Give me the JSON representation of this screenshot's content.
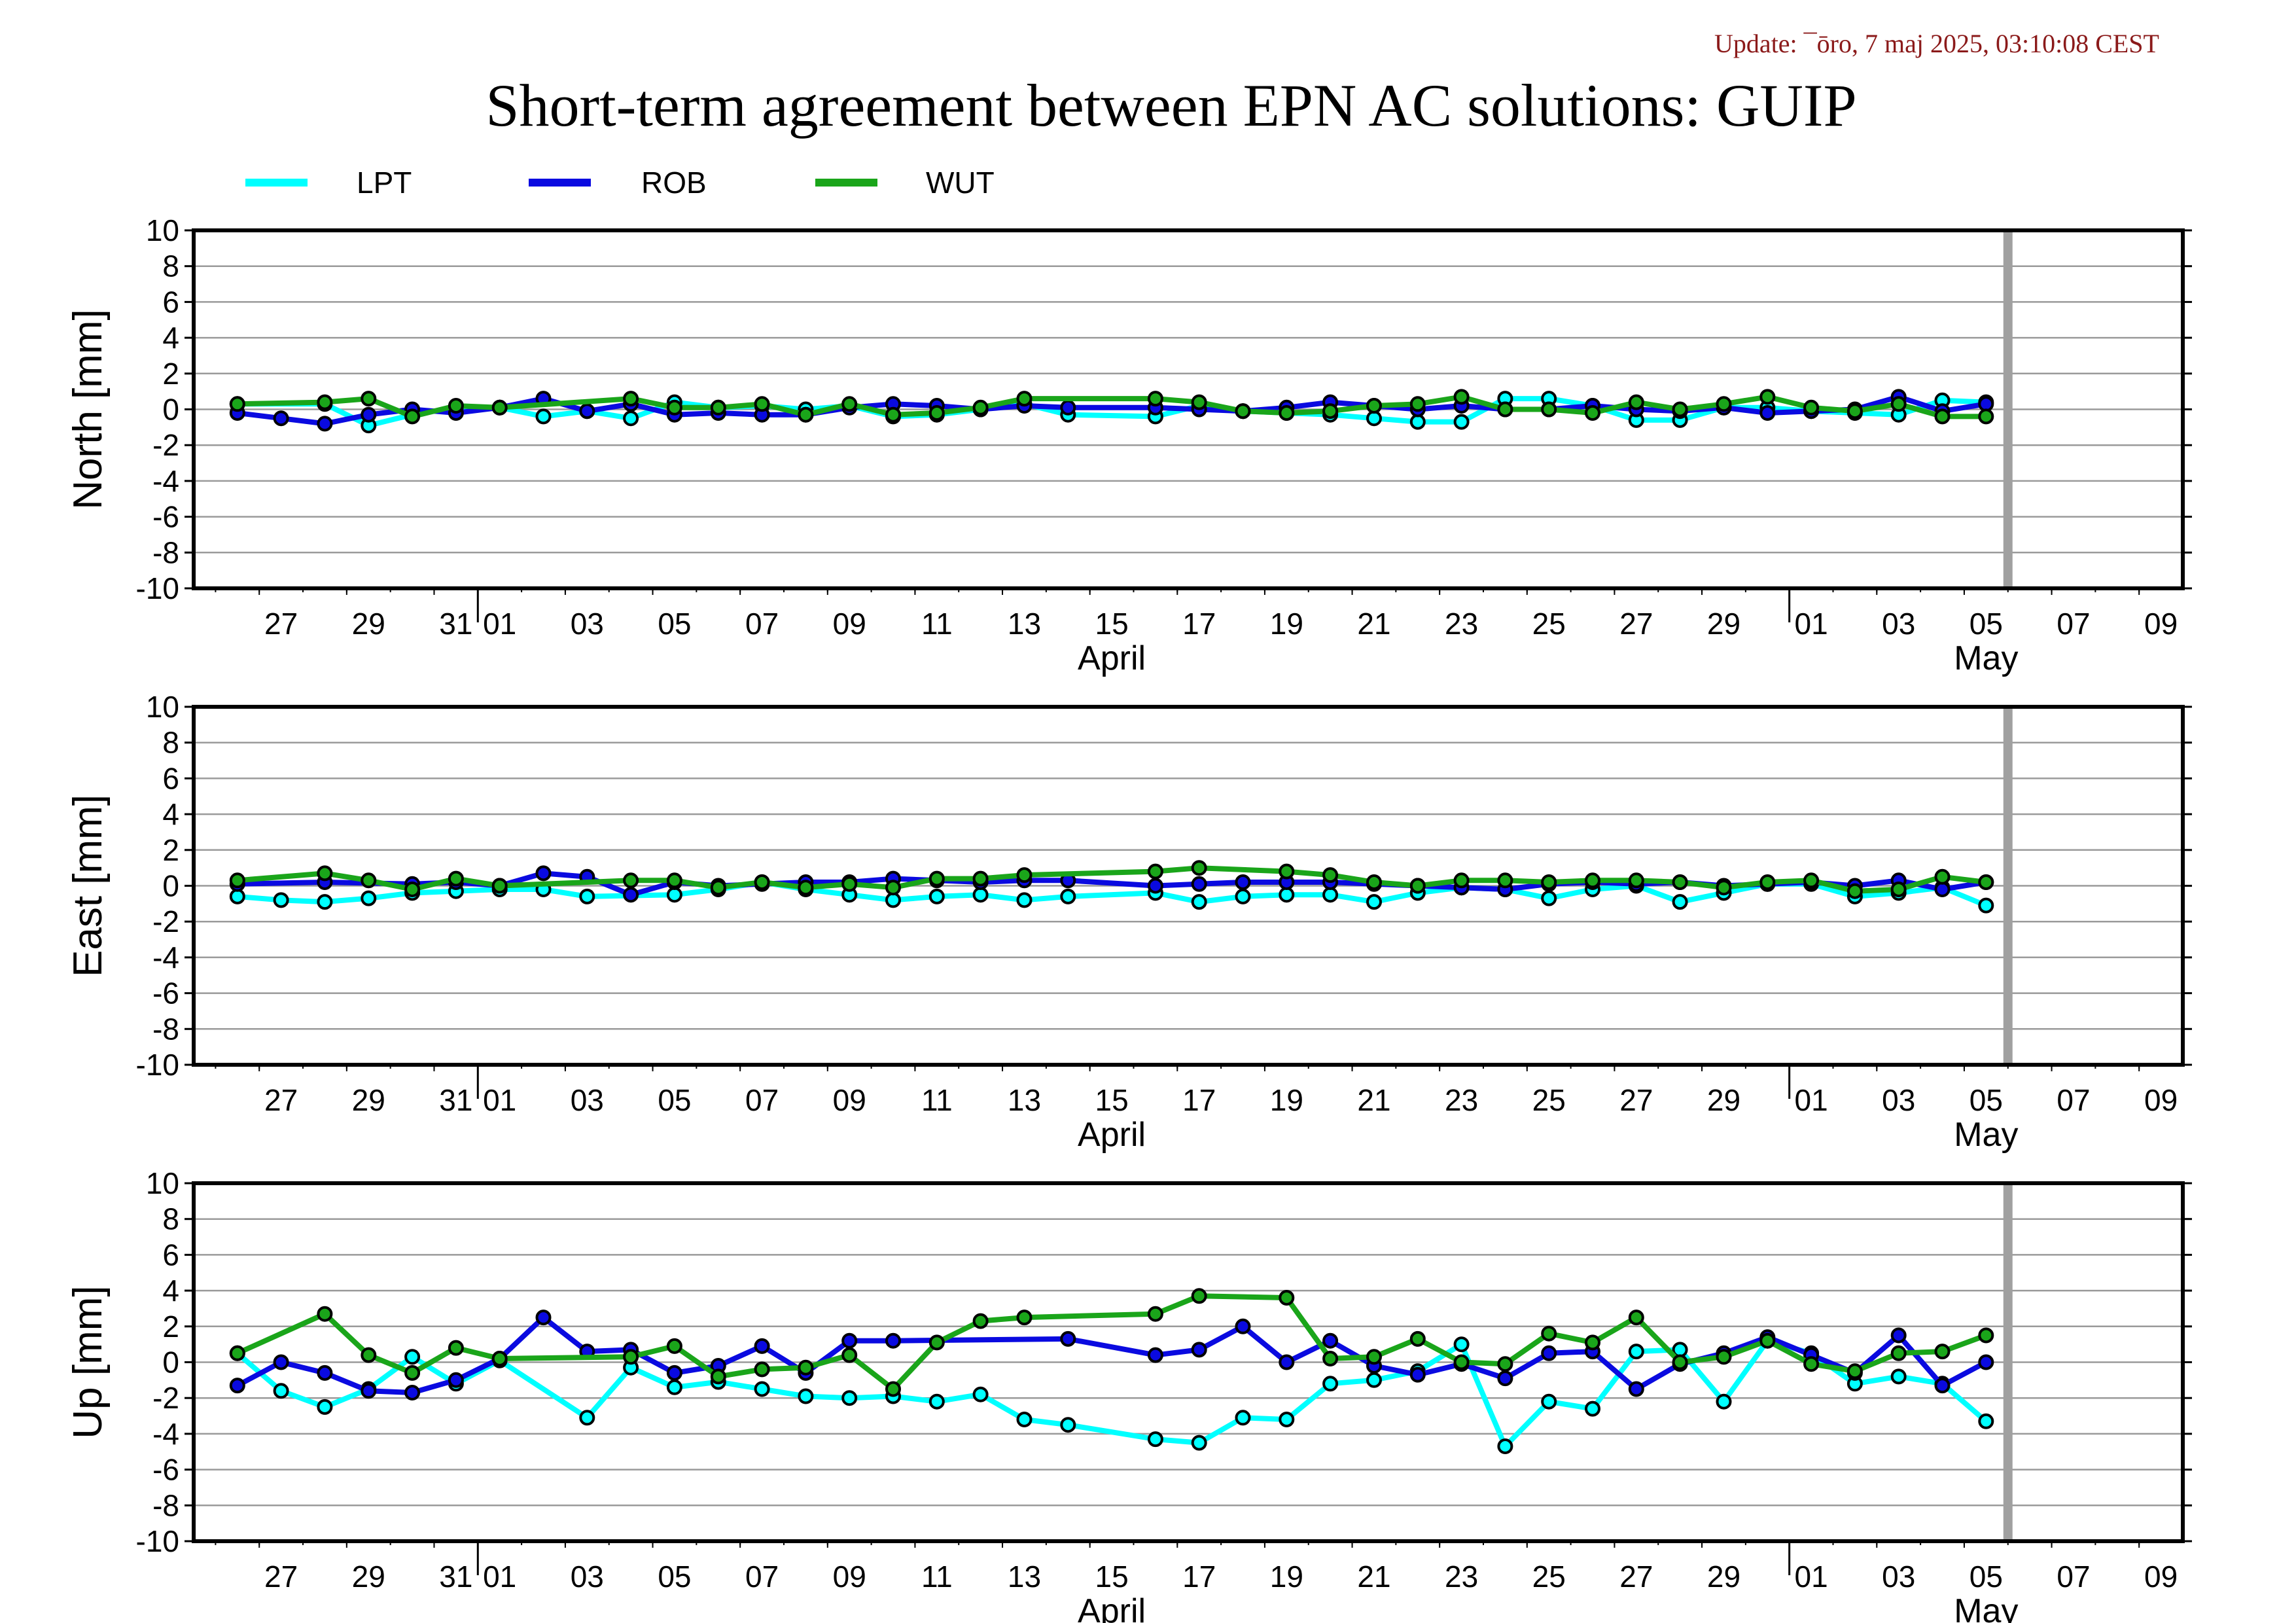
{
  "update_text": "Update: ¯ōro, 7 maj 2025, 03:10:08 CEST",
  "title": "Short-term agreement between EPN AC solutions: GUIP",
  "colors": {
    "LPT": "#00ffff",
    "ROB": "#0a0ae0",
    "WUT": "#1aa51a",
    "grid": "#9a9a9a",
    "today_bar": "#a0a0a0",
    "frame": "#000000"
  },
  "legend": [
    {
      "name": "LPT",
      "color_key": "LPT"
    },
    {
      "name": "ROB",
      "color_key": "ROB"
    },
    {
      "name": "WUT",
      "color_key": "WUT"
    }
  ],
  "chart_data": [
    {
      "type": "line",
      "ylabel": "North [mm]",
      "ylim": [
        -10,
        10
      ],
      "yticks": [
        10,
        8,
        6,
        4,
        2,
        0,
        -2,
        -4,
        -6,
        -8,
        -10
      ],
      "xlim": [
        "2025-03-25T12:00",
        "2025-05-10T00:00"
      ],
      "xtick_labels": [
        "27",
        "29",
        "31",
        "01",
        "03",
        "05",
        "07",
        "09",
        "11",
        "13",
        "15",
        "17",
        "19",
        "21",
        "23",
        "25",
        "27",
        "29",
        "01",
        "03",
        "05",
        "07",
        "09"
      ],
      "month_labels": [
        "April",
        "May"
      ],
      "today_marker": "2025-05-06",
      "grid": true,
      "legend_position": "top",
      "series": [
        {
          "name": "LPT",
          "x": [
            "2025-03-26",
            "2025-03-28",
            "2025-03-29",
            "2025-03-30",
            "2025-03-31",
            "2025-04-01",
            "2025-04-02",
            "2025-04-03",
            "2025-04-04",
            "2025-04-05",
            "2025-04-06",
            "2025-04-07",
            "2025-04-08",
            "2025-04-09",
            "2025-04-10",
            "2025-04-11",
            "2025-04-12",
            "2025-04-13",
            "2025-04-14",
            "2025-04-16",
            "2025-04-17",
            "2025-04-18",
            "2025-04-19",
            "2025-04-20",
            "2025-04-21",
            "2025-04-22",
            "2025-04-23",
            "2025-04-24",
            "2025-04-25",
            "2025-04-26",
            "2025-04-27",
            "2025-04-28",
            "2025-04-29",
            "2025-04-30",
            "2025-05-01",
            "2025-05-02",
            "2025-05-03",
            "2025-05-04",
            "2025-05-05"
          ],
          "y": [
            0.3,
            0.3,
            -0.9,
            -0.3,
            0.1,
            0.1,
            -0.4,
            -0.1,
            -0.5,
            0.4,
            0.1,
            0.2,
            0.0,
            0.2,
            -0.4,
            -0.3,
            0.0,
            0.3,
            -0.3,
            -0.4,
            0.2,
            -0.1,
            -0.2,
            -0.3,
            -0.5,
            -0.7,
            -0.7,
            0.6,
            0.6,
            0.2,
            -0.6,
            -0.6,
            0.1,
            0.1,
            -0.1,
            -0.2,
            -0.3,
            0.5,
            0.4
          ]
        },
        {
          "name": "ROB",
          "x": [
            "2025-03-26",
            "2025-03-27",
            "2025-03-28",
            "2025-03-29",
            "2025-03-30",
            "2025-03-31",
            "2025-04-01",
            "2025-04-02",
            "2025-04-03",
            "2025-04-04",
            "2025-04-05",
            "2025-04-06",
            "2025-04-07",
            "2025-04-08",
            "2025-04-09",
            "2025-04-10",
            "2025-04-11",
            "2025-04-12",
            "2025-04-13",
            "2025-04-14",
            "2025-04-16",
            "2025-04-17",
            "2025-04-18",
            "2025-04-19",
            "2025-04-20",
            "2025-04-21",
            "2025-04-22",
            "2025-04-23",
            "2025-04-24",
            "2025-04-25",
            "2025-04-26",
            "2025-04-27",
            "2025-04-28",
            "2025-04-29",
            "2025-04-30",
            "2025-05-01",
            "2025-05-02",
            "2025-05-03",
            "2025-05-04",
            "2025-05-05"
          ],
          "y": [
            -0.2,
            -0.5,
            -0.8,
            -0.3,
            0.0,
            -0.2,
            0.1,
            0.6,
            -0.1,
            0.3,
            -0.3,
            -0.2,
            -0.3,
            -0.3,
            0.1,
            0.3,
            0.2,
            0.0,
            0.2,
            0.1,
            0.1,
            0.0,
            -0.1,
            0.1,
            0.4,
            0.2,
            0.0,
            0.2,
            0.0,
            0.0,
            0.2,
            0.0,
            -0.1,
            0.1,
            -0.2,
            -0.1,
            0.0,
            0.7,
            -0.1,
            0.3
          ]
        },
        {
          "name": "WUT",
          "x": [
            "2025-03-26",
            "2025-03-28",
            "2025-03-29",
            "2025-03-30",
            "2025-03-31",
            "2025-04-01",
            "2025-04-04",
            "2025-04-05",
            "2025-04-06",
            "2025-04-07",
            "2025-04-08",
            "2025-04-09",
            "2025-04-10",
            "2025-04-11",
            "2025-04-12",
            "2025-04-13",
            "2025-04-16",
            "2025-04-17",
            "2025-04-18",
            "2025-04-19",
            "2025-04-20",
            "2025-04-21",
            "2025-04-22",
            "2025-04-23",
            "2025-04-24",
            "2025-04-25",
            "2025-04-26",
            "2025-04-27",
            "2025-04-28",
            "2025-04-29",
            "2025-04-30",
            "2025-05-01",
            "2025-05-02",
            "2025-05-03",
            "2025-05-04",
            "2025-05-05"
          ],
          "y": [
            0.3,
            0.4,
            0.6,
            -0.4,
            0.2,
            0.1,
            0.6,
            0.1,
            0.1,
            0.3,
            -0.3,
            0.3,
            -0.3,
            -0.2,
            0.1,
            0.6,
            0.6,
            0.4,
            -0.1,
            -0.2,
            -0.1,
            0.2,
            0.3,
            0.7,
            0.0,
            0.0,
            -0.2,
            0.4,
            0.0,
            0.3,
            0.7,
            0.1,
            -0.1,
            0.3,
            -0.4,
            -0.4
          ]
        }
      ]
    },
    {
      "type": "line",
      "ylabel": "East [mm]",
      "ylim": [
        -10,
        10
      ],
      "yticks": [
        10,
        8,
        6,
        4,
        2,
        0,
        -2,
        -4,
        -6,
        -8,
        -10
      ],
      "xlim": [
        "2025-03-25T12:00",
        "2025-05-10T00:00"
      ],
      "xtick_labels": [
        "27",
        "29",
        "31",
        "01",
        "03",
        "05",
        "07",
        "09",
        "11",
        "13",
        "15",
        "17",
        "19",
        "21",
        "23",
        "25",
        "27",
        "29",
        "01",
        "03",
        "05",
        "07",
        "09"
      ],
      "month_labels": [
        "April",
        "May"
      ],
      "today_marker": "2025-05-06",
      "grid": true,
      "series": [
        {
          "name": "LPT",
          "x": [
            "2025-03-26",
            "2025-03-27",
            "2025-03-28",
            "2025-03-29",
            "2025-03-30",
            "2025-03-31",
            "2025-04-01",
            "2025-04-02",
            "2025-04-03",
            "2025-04-05",
            "2025-04-06",
            "2025-04-07",
            "2025-04-08",
            "2025-04-09",
            "2025-04-10",
            "2025-04-11",
            "2025-04-12",
            "2025-04-13",
            "2025-04-14",
            "2025-04-16",
            "2025-04-17",
            "2025-04-18",
            "2025-04-19",
            "2025-04-20",
            "2025-04-21",
            "2025-04-22",
            "2025-04-23",
            "2025-04-24",
            "2025-04-25",
            "2025-04-26",
            "2025-04-27",
            "2025-04-28",
            "2025-04-29",
            "2025-04-30",
            "2025-05-01",
            "2025-05-02",
            "2025-05-03",
            "2025-05-04",
            "2025-05-05"
          ],
          "y": [
            -0.6,
            -0.8,
            -0.9,
            -0.7,
            -0.4,
            -0.3,
            -0.2,
            -0.2,
            -0.6,
            -0.5,
            -0.2,
            0.2,
            -0.2,
            -0.5,
            -0.8,
            -0.6,
            -0.5,
            -0.8,
            -0.6,
            -0.4,
            -0.9,
            -0.6,
            -0.5,
            -0.5,
            -0.9,
            -0.4,
            -0.1,
            -0.2,
            -0.7,
            -0.2,
            0.0,
            -0.9,
            -0.4,
            0.1,
            0.1,
            -0.6,
            -0.4,
            -0.1,
            -1.1
          ]
        },
        {
          "name": "ROB",
          "x": [
            "2025-03-26",
            "2025-03-28",
            "2025-03-30",
            "2025-03-31",
            "2025-04-01",
            "2025-04-02",
            "2025-04-03",
            "2025-04-04",
            "2025-04-05",
            "2025-04-06",
            "2025-04-07",
            "2025-04-08",
            "2025-04-09",
            "2025-04-10",
            "2025-04-11",
            "2025-04-12",
            "2025-04-13",
            "2025-04-14",
            "2025-04-16",
            "2025-04-17",
            "2025-04-18",
            "2025-04-19",
            "2025-04-20",
            "2025-04-21",
            "2025-04-22",
            "2025-04-23",
            "2025-04-24",
            "2025-04-25",
            "2025-04-26",
            "2025-04-27",
            "2025-04-28",
            "2025-04-29",
            "2025-04-30",
            "2025-05-01",
            "2025-05-02",
            "2025-05-03",
            "2025-05-04",
            "2025-05-05"
          ],
          "y": [
            0.1,
            0.2,
            0.1,
            0.2,
            0.0,
            0.7,
            0.5,
            -0.5,
            0.2,
            0.0,
            0.1,
            0.2,
            0.2,
            0.4,
            0.3,
            0.2,
            0.3,
            0.3,
            0.0,
            0.1,
            0.2,
            0.2,
            0.2,
            0.1,
            0.0,
            -0.1,
            -0.2,
            0.1,
            0.2,
            0.1,
            0.2,
            0.0,
            0.1,
            0.2,
            0.0,
            0.3,
            -0.2,
            0.2
          ]
        },
        {
          "name": "WUT",
          "x": [
            "2025-03-26",
            "2025-03-28",
            "2025-03-29",
            "2025-03-30",
            "2025-03-31",
            "2025-04-01",
            "2025-04-04",
            "2025-04-05",
            "2025-04-06",
            "2025-04-07",
            "2025-04-08",
            "2025-04-09",
            "2025-04-10",
            "2025-04-11",
            "2025-04-12",
            "2025-04-13",
            "2025-04-16",
            "2025-04-17",
            "2025-04-19",
            "2025-04-20",
            "2025-04-21",
            "2025-04-22",
            "2025-04-23",
            "2025-04-24",
            "2025-04-25",
            "2025-04-26",
            "2025-04-27",
            "2025-04-28",
            "2025-04-29",
            "2025-04-30",
            "2025-05-01",
            "2025-05-02",
            "2025-05-03",
            "2025-05-04",
            "2025-05-05"
          ],
          "y": [
            0.3,
            0.7,
            0.3,
            -0.2,
            0.4,
            0.0,
            0.3,
            0.3,
            -0.1,
            0.2,
            -0.1,
            0.1,
            -0.1,
            0.4,
            0.4,
            0.6,
            0.8,
            1.0,
            0.8,
            0.6,
            0.2,
            0.0,
            0.3,
            0.3,
            0.2,
            0.3,
            0.3,
            0.2,
            -0.1,
            0.2,
            0.3,
            -0.3,
            -0.2,
            0.5,
            0.2
          ]
        }
      ]
    },
    {
      "type": "line",
      "ylabel": "Up [mm]",
      "ylim": [
        -10,
        10
      ],
      "yticks": [
        10,
        8,
        6,
        4,
        2,
        0,
        -2,
        -4,
        -6,
        -8,
        -10
      ],
      "xlim": [
        "2025-03-25T12:00",
        "2025-05-10T00:00"
      ],
      "xtick_labels": [
        "27",
        "29",
        "31",
        "01",
        "03",
        "05",
        "07",
        "09",
        "11",
        "13",
        "15",
        "17",
        "19",
        "21",
        "23",
        "25",
        "27",
        "29",
        "01",
        "03",
        "05",
        "07",
        "09"
      ],
      "month_labels": [
        "April",
        "May"
      ],
      "today_marker": "2025-05-06",
      "grid": true,
      "series": [
        {
          "name": "LPT",
          "x": [
            "2025-03-26",
            "2025-03-27",
            "2025-03-28",
            "2025-03-29",
            "2025-03-30",
            "2025-03-31",
            "2025-04-01",
            "2025-04-03",
            "2025-04-04",
            "2025-04-05",
            "2025-04-06",
            "2025-04-07",
            "2025-04-08",
            "2025-04-09",
            "2025-04-10",
            "2025-04-11",
            "2025-04-12",
            "2025-04-13",
            "2025-04-14",
            "2025-04-16",
            "2025-04-17",
            "2025-04-18",
            "2025-04-19",
            "2025-04-20",
            "2025-04-21",
            "2025-04-22",
            "2025-04-23",
            "2025-04-24",
            "2025-04-25",
            "2025-04-26",
            "2025-04-27",
            "2025-04-28",
            "2025-04-29",
            "2025-04-30",
            "2025-05-01",
            "2025-05-02",
            "2025-05-03",
            "2025-05-04",
            "2025-05-05"
          ],
          "y": [
            0.5,
            -1.6,
            -2.5,
            -1.5,
            0.3,
            -1.2,
            0.1,
            -3.1,
            -0.3,
            -1.4,
            -1.1,
            -1.5,
            -1.9,
            -2.0,
            -1.9,
            -2.2,
            -1.8,
            -3.2,
            -3.5,
            -4.3,
            -4.5,
            -3.1,
            -3.2,
            -1.2,
            -1.0,
            -0.5,
            1.0,
            -4.7,
            -2.2,
            -2.6,
            0.6,
            0.7,
            -2.2,
            1.2,
            0.5,
            -1.2,
            -0.8,
            -1.2,
            -3.3
          ]
        },
        {
          "name": "ROB",
          "x": [
            "2025-03-26",
            "2025-03-27",
            "2025-03-28",
            "2025-03-29",
            "2025-03-30",
            "2025-03-31",
            "2025-04-01",
            "2025-04-02",
            "2025-04-03",
            "2025-04-04",
            "2025-04-05",
            "2025-04-06",
            "2025-04-07",
            "2025-04-08",
            "2025-04-09",
            "2025-04-10",
            "2025-04-14",
            "2025-04-16",
            "2025-04-17",
            "2025-04-18",
            "2025-04-19",
            "2025-04-20",
            "2025-04-21",
            "2025-04-22",
            "2025-04-23",
            "2025-04-24",
            "2025-04-25",
            "2025-04-26",
            "2025-04-27",
            "2025-04-28",
            "2025-04-29",
            "2025-04-30",
            "2025-05-01",
            "2025-05-02",
            "2025-05-03",
            "2025-05-04",
            "2025-05-05"
          ],
          "y": [
            -1.3,
            0.0,
            -0.6,
            -1.6,
            -1.7,
            -1.0,
            0.2,
            2.5,
            0.6,
            0.7,
            -0.6,
            -0.2,
            0.9,
            -0.6,
            1.2,
            1.2,
            1.3,
            0.4,
            0.7,
            2.0,
            0.0,
            1.2,
            -0.2,
            -0.7,
            -0.1,
            -0.9,
            0.5,
            0.6,
            -1.5,
            -0.1,
            0.5,
            1.4,
            0.4,
            -0.6,
            1.5,
            -1.3,
            0.0
          ]
        },
        {
          "name": "WUT",
          "x": [
            "2025-03-26",
            "2025-03-28",
            "2025-03-29",
            "2025-03-30",
            "2025-03-31",
            "2025-04-01",
            "2025-04-04",
            "2025-04-05",
            "2025-04-06",
            "2025-04-07",
            "2025-04-08",
            "2025-04-09",
            "2025-04-10",
            "2025-04-11",
            "2025-04-12",
            "2025-04-13",
            "2025-04-16",
            "2025-04-17",
            "2025-04-19",
            "2025-04-20",
            "2025-04-21",
            "2025-04-22",
            "2025-04-23",
            "2025-04-24",
            "2025-04-25",
            "2025-04-26",
            "2025-04-27",
            "2025-04-28",
            "2025-04-29",
            "2025-04-30",
            "2025-05-01",
            "2025-05-02",
            "2025-05-03",
            "2025-05-04",
            "2025-05-05"
          ],
          "y": [
            0.5,
            2.7,
            0.4,
            -0.6,
            0.8,
            0.2,
            0.3,
            0.9,
            -0.8,
            -0.4,
            -0.3,
            0.4,
            -1.5,
            1.1,
            2.3,
            2.5,
            2.7,
            3.7,
            3.6,
            0.2,
            0.3,
            1.3,
            0.0,
            -0.1,
            1.6,
            1.1,
            2.5,
            0.0,
            0.3,
            1.2,
            -0.1,
            -0.5,
            0.5,
            0.6,
            1.5
          ]
        }
      ]
    }
  ]
}
